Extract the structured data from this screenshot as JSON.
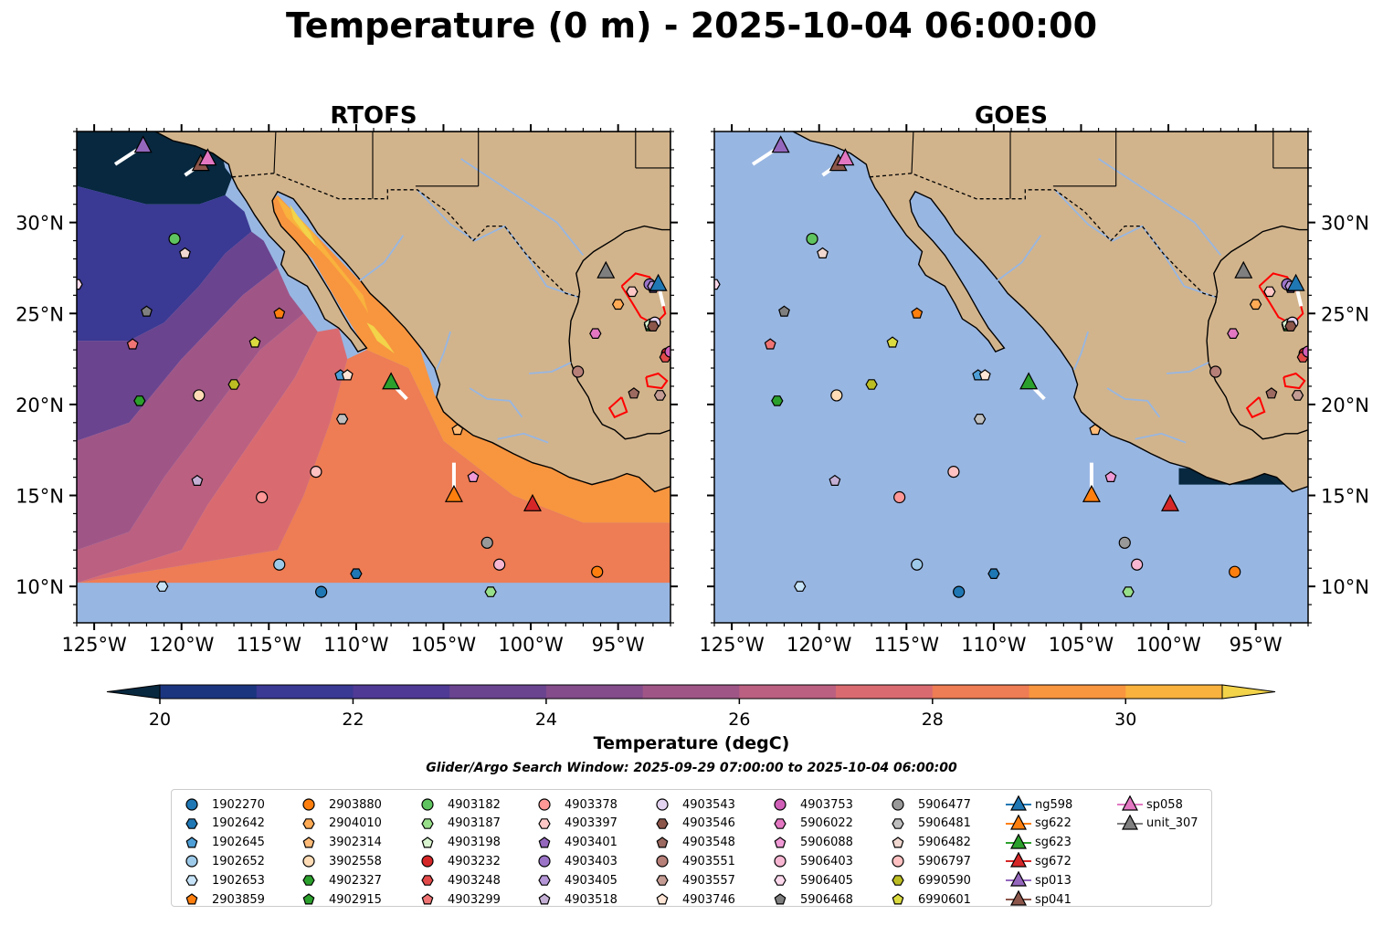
{
  "title": "Temperature (0 m) - 2025-10-04 06:00:00",
  "panels": [
    {
      "title": "RTOFS",
      "field_visible": true
    },
    {
      "title": "GOES",
      "field_visible": false
    }
  ],
  "map": {
    "lon_range": [
      -126,
      -92
    ],
    "lat_range": [
      8,
      35
    ],
    "lon_ticks": [
      -125,
      -120,
      -115,
      -110,
      -105,
      -100,
      -95
    ],
    "lon_tick_labels": [
      "125°W",
      "120°W",
      "115°W",
      "110°W",
      "105°W",
      "100°W",
      "95°W"
    ],
    "lat_ticks": [
      10,
      15,
      20,
      25,
      30
    ],
    "lat_tick_labels": [
      "10°N",
      "15°N",
      "20°N",
      "25°N",
      "30°N"
    ],
    "colors": {
      "land": "#d2b48c",
      "ocean": "#98b6e2",
      "border": "#000000",
      "river": "#97b6e2",
      "front": "#ff0000"
    }
  },
  "colorbar": {
    "label": "Temperature (degC)",
    "min": 20,
    "max": 31,
    "ticks": [
      20,
      22,
      24,
      26,
      28,
      30
    ],
    "tick_labels": [
      "20",
      "22",
      "24",
      "26",
      "28",
      "30"
    ],
    "colors": [
      "#07283f",
      "#1b357f",
      "#3a3993",
      "#4f3a95",
      "#6a448f",
      "#844c8b",
      "#9f5687",
      "#bb6081",
      "#d96b70",
      "#ee7c54",
      "#f8953f",
      "#f8b23d",
      "#f2d349"
    ],
    "extend": "both"
  },
  "search_window": "Glider/Argo Search Window: 2025-09-29 07:00:00 to 2025-10-04 06:00:00",
  "argo": [
    {
      "id": "1902270",
      "lon": -112.0,
      "lat": 9.7,
      "marker": "o",
      "color": "#1f77b4"
    },
    {
      "id": "1902642",
      "lon": -110.0,
      "lat": 10.7,
      "marker": "h",
      "color": "#1f77b4"
    },
    {
      "id": "1902645",
      "lon": -110.9,
      "lat": 21.6,
      "marker": "p",
      "color": "#4e9fd7"
    },
    {
      "id": "1902652",
      "lon": -114.4,
      "lat": 11.2,
      "marker": "o",
      "color": "#9ecae9"
    },
    {
      "id": "1902653",
      "lon": -121.1,
      "lat": 10.0,
      "marker": "h",
      "color": "#c6e3f7"
    },
    {
      "id": "2903859",
      "lon": -114.4,
      "lat": 25.0,
      "marker": "p",
      "color": "#ff7f0e"
    },
    {
      "id": "2903880",
      "lon": -96.2,
      "lat": 10.8,
      "marker": "o",
      "color": "#ff7f0e"
    },
    {
      "id": "2904010",
      "lon": -95.0,
      "lat": 25.5,
      "marker": "h",
      "color": "#ffaa55"
    },
    {
      "id": "3902314",
      "lon": -104.2,
      "lat": 18.6,
      "marker": "p",
      "color": "#ffbb78"
    },
    {
      "id": "3902558",
      "lon": -119.0,
      "lat": 20.5,
      "marker": "o",
      "color": "#ffdcb5"
    },
    {
      "id": "4902327",
      "lon": -122.4,
      "lat": 20.2,
      "marker": "h",
      "color": "#2ca02c"
    },
    {
      "id": "4902915",
      "lon": -93.2,
      "lat": 24.3,
      "marker": "p",
      "color": "#2ca02c"
    },
    {
      "id": "4903182",
      "lon": -120.4,
      "lat": 29.1,
      "marker": "o",
      "color": "#5fc45f"
    },
    {
      "id": "4903187",
      "lon": -102.3,
      "lat": 9.7,
      "marker": "h",
      "color": "#98df8a"
    },
    {
      "id": "4903198",
      "lon": -93.2,
      "lat": 24.4,
      "marker": "p",
      "color": "#d9f5d0"
    },
    {
      "id": "4903232",
      "lon": -92.2,
      "lat": 22.8,
      "marker": "o",
      "color": "#d62728"
    },
    {
      "id": "4903248",
      "lon": -92.3,
      "lat": 22.6,
      "marker": "h",
      "color": "#e24a4a"
    },
    {
      "id": "4903299",
      "lon": -122.8,
      "lat": 23.3,
      "marker": "p",
      "color": "#f07474"
    },
    {
      "id": "4903378",
      "lon": -115.4,
      "lat": 14.9,
      "marker": "o",
      "color": "#ff9896"
    },
    {
      "id": "4903397",
      "lon": -94.2,
      "lat": 26.2,
      "marker": "h",
      "color": "#ffc8c6"
    },
    {
      "id": "4903401",
      "lon": -93.0,
      "lat": 26.4,
      "marker": "p",
      "color": "#9467bd"
    },
    {
      "id": "4903403",
      "lon": -93.2,
      "lat": 26.6,
      "marker": "o",
      "color": "#9b74c8"
    },
    {
      "id": "4903405",
      "lon": -93.0,
      "lat": 26.5,
      "marker": "h",
      "color": "#b596d6"
    },
    {
      "id": "4903518",
      "lon": -119.1,
      "lat": 15.8,
      "marker": "p",
      "color": "#c5b0d5"
    },
    {
      "id": "4903543",
      "lon": -92.9,
      "lat": 24.5,
      "marker": "o",
      "color": "#e3d3f0"
    },
    {
      "id": "4903546",
      "lon": -93.0,
      "lat": 24.3,
      "marker": "h",
      "color": "#8c564b"
    },
    {
      "id": "4903548",
      "lon": -94.1,
      "lat": 20.6,
      "marker": "p",
      "color": "#9c6a60"
    },
    {
      "id": "4903551",
      "lon": -97.3,
      "lat": 21.8,
      "marker": "o",
      "color": "#b67f78"
    },
    {
      "id": "4903557",
      "lon": -92.6,
      "lat": 20.5,
      "marker": "h",
      "color": "#c49c94"
    },
    {
      "id": "4903746",
      "lon": -110.5,
      "lat": 21.6,
      "marker": "p",
      "color": "#ffe5d5"
    },
    {
      "id": "4903753",
      "lon": -92.0,
      "lat": 22.9,
      "marker": "o",
      "color": "#d05fb8"
    },
    {
      "id": "5906022",
      "lon": -96.3,
      "lat": 23.9,
      "marker": "h",
      "color": "#e377c2"
    },
    {
      "id": "5906088",
      "lon": -103.3,
      "lat": 16.0,
      "marker": "p",
      "color": "#f09ad6"
    },
    {
      "id": "5906403",
      "lon": -101.8,
      "lat": 11.2,
      "marker": "o",
      "color": "#f7b6d2"
    },
    {
      "id": "5906405",
      "lon": -126.0,
      "lat": 26.6,
      "marker": "h",
      "color": "#fcd8ec"
    },
    {
      "id": "5906468",
      "lon": -122.0,
      "lat": 25.1,
      "marker": "p",
      "color": "#7f7f7f"
    },
    {
      "id": "5906477",
      "lon": -102.5,
      "lat": 12.4,
      "marker": "o",
      "color": "#999999"
    },
    {
      "id": "5906481",
      "lon": -110.8,
      "lat": 19.2,
      "marker": "h",
      "color": "#bfbfbf"
    },
    {
      "id": "5906482",
      "lon": -119.8,
      "lat": 28.3,
      "marker": "p",
      "color": "#f0d8d0"
    },
    {
      "id": "5906797",
      "lon": -112.3,
      "lat": 16.3,
      "marker": "o",
      "color": "#ffc1c1"
    },
    {
      "id": "6990590",
      "lon": -117.0,
      "lat": 21.1,
      "marker": "h",
      "color": "#bcbd22"
    },
    {
      "id": "6990601",
      "lon": -115.8,
      "lat": 23.4,
      "marker": "p",
      "color": "#dbdb3f"
    }
  ],
  "gliders": [
    {
      "id": "ng598",
      "lon": -92.7,
      "lat": 26.6,
      "color": "#1f77b4"
    },
    {
      "id": "sg622",
      "lon": -104.4,
      "lat": 15.0,
      "color": "#ff7f0e"
    },
    {
      "id": "sg623",
      "lon": -108.0,
      "lat": 21.2,
      "color": "#2ca02c"
    },
    {
      "id": "sg672",
      "lon": -99.9,
      "lat": 14.5,
      "color": "#d62728"
    },
    {
      "id": "sp013",
      "lon": -122.2,
      "lat": 34.2,
      "color": "#9467bd"
    },
    {
      "id": "sp041",
      "lon": -118.9,
      "lat": 33.2,
      "color": "#8c564b"
    },
    {
      "id": "sp058",
      "lon": -118.5,
      "lat": 33.5,
      "color": "#e377c2"
    },
    {
      "id": "unit_307",
      "lon": -95.7,
      "lat": 27.3,
      "color": "#7f7f7f"
    }
  ]
}
